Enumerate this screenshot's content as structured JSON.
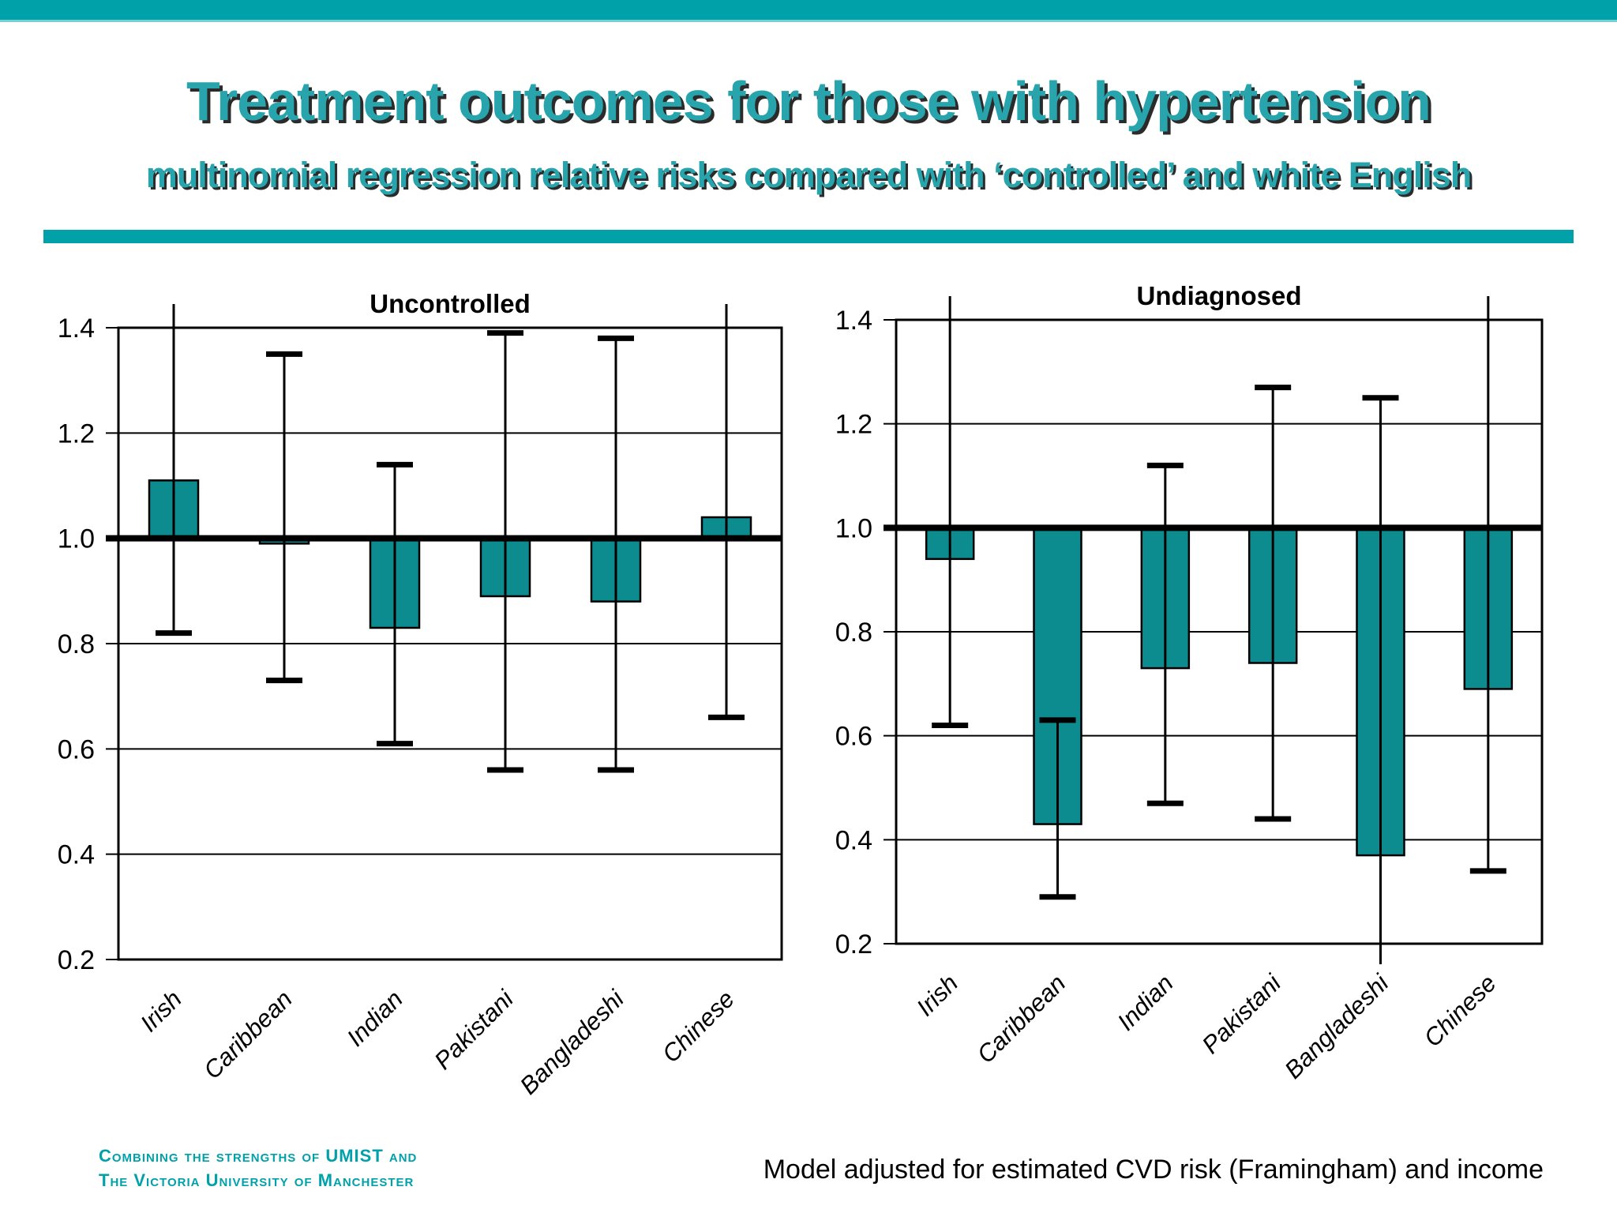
{
  "slide": {
    "title": "Treatment outcomes for those with hypertension",
    "subtitle": "multinomial regression relative risks compared with ‘controlled’ and white English",
    "footer_left_line1": "Combining the strengths of UMIST and",
    "footer_left_line2": "The Victoria University of Manchester",
    "footer_right": "Model adjusted for estimated CVD risk (Framingham) and income"
  },
  "colors": {
    "accent": "#00a1a9",
    "accent_light": "#7acfd3",
    "title_text": "#27a4ac",
    "bar_fill": "#0d8c90",
    "line": "#000000"
  },
  "chart_data": [
    {
      "type": "bar",
      "title": "Uncontrolled",
      "categories": [
        "Irish",
        "Caribbean",
        "Indian",
        "Pakistani",
        "Bangladeshi",
        "Chinese"
      ],
      "values": [
        1.11,
        0.99,
        0.83,
        0.89,
        0.88,
        1.04
      ],
      "error_low": [
        0.82,
        0.73,
        0.61,
        0.56,
        0.56,
        0.66
      ],
      "error_high": [
        null,
        1.35,
        1.14,
        1.39,
        1.38,
        null
      ],
      "offscale_note": "null error bound = whisker extends beyond plotted axis range",
      "baseline": 1.0,
      "ylim": [
        0.2,
        1.4
      ],
      "yticks": [
        1.4,
        1.2,
        1.0,
        0.8,
        0.6,
        0.4,
        0.2
      ],
      "grid": "horizontal gridlines at each 0.2",
      "legend": "none",
      "xlabel": "",
      "ylabel": ""
    },
    {
      "type": "bar",
      "title": "Undiagnosed",
      "categories": [
        "Irish",
        "Caribbean",
        "Indian",
        "Pakistani",
        "Bangladeshi",
        "Chinese"
      ],
      "values": [
        0.94,
        0.43,
        0.73,
        0.74,
        0.37,
        0.69
      ],
      "error_low": [
        0.62,
        0.29,
        0.47,
        0.44,
        null,
        0.34
      ],
      "error_high": [
        null,
        0.63,
        1.12,
        1.27,
        1.25,
        null
      ],
      "offscale_note": "null error bound = whisker extends beyond plotted axis range",
      "baseline": 1.0,
      "ylim": [
        0.2,
        1.4
      ],
      "yticks": [
        1.4,
        1.2,
        1.0,
        0.8,
        0.6,
        0.4,
        0.2
      ],
      "grid": "horizontal gridlines at each 0.2",
      "legend": "none",
      "xlabel": "",
      "ylabel": ""
    }
  ]
}
